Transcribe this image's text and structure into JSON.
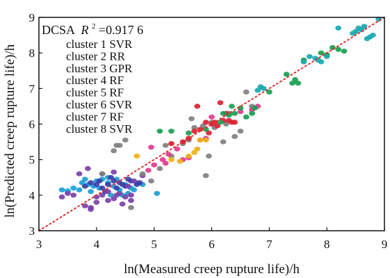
{
  "chart_data": {
    "type": "scatter",
    "xlabel": "ln(Measured creep rupture life)/h",
    "ylabel": "ln(Predicted creep rupture life)/h",
    "xlim": [
      3,
      9
    ],
    "ylim": [
      3,
      9
    ],
    "xticks": [
      "3",
      "4",
      "5",
      "6",
      "7",
      "8",
      "9"
    ],
    "yticks": [
      "3",
      "4",
      "5",
      "6",
      "7",
      "8",
      "9"
    ],
    "grid": false,
    "legend_position": "top-left",
    "annotation": {
      "method": "DCSA",
      "r2_symbol": "R",
      "r2_sup": "2",
      "r2_value": "=0.917 6"
    },
    "reference_line": {
      "x": [
        3,
        9
      ],
      "y": [
        3,
        9
      ],
      "color": "#e03030",
      "style": "dotted"
    },
    "legend": [
      "cluster 1 SVR",
      "cluster 2 RR",
      "cluster 3 GPR",
      "cluster 4 RF",
      "cluster 5 RF",
      "cluster 6 SVR",
      "cluster 7 RF",
      "cluster 8 SVR"
    ],
    "groups": [
      {
        "color": "#1a9ed8",
        "points": [
          [
            3.4,
            4.15
          ],
          [
            3.5,
            4.12
          ],
          [
            3.6,
            4.2
          ],
          [
            3.7,
            4.15
          ],
          [
            3.75,
            4.35
          ],
          [
            3.85,
            4.3
          ],
          [
            3.9,
            4.1
          ],
          [
            4.0,
            4.4
          ],
          [
            4.05,
            4.2
          ],
          [
            4.1,
            4.45
          ],
          [
            4.2,
            4.35
          ],
          [
            4.25,
            4.0
          ],
          [
            4.3,
            4.25
          ],
          [
            4.35,
            4.45
          ],
          [
            4.4,
            4.15
          ],
          [
            4.5,
            4.3
          ],
          [
            4.55,
            4.05
          ],
          [
            4.6,
            4.2
          ],
          [
            4.7,
            4.35
          ],
          [
            4.8,
            4.3
          ],
          [
            4.2,
            4.5
          ],
          [
            3.95,
            4.25
          ],
          [
            4.45,
            4.0
          ],
          [
            4.65,
            4.15
          ],
          [
            3.8,
            4.45
          ],
          [
            5.05,
            4.05
          ]
        ]
      },
      {
        "color": "#3b3fa8",
        "points": [
          [
            3.8,
            4.25
          ],
          [
            3.9,
            4.35
          ],
          [
            4.0,
            4.3
          ],
          [
            4.1,
            4.2
          ],
          [
            4.2,
            4.3
          ],
          [
            4.3,
            4.4
          ],
          [
            4.4,
            4.35
          ],
          [
            4.5,
            4.25
          ],
          [
            4.6,
            4.4
          ],
          [
            4.7,
            4.3
          ],
          [
            4.75,
            4.35
          ],
          [
            4.15,
            4.1
          ],
          [
            4.35,
            4.2
          ],
          [
            4.55,
            4.45
          ],
          [
            4.05,
            4.4
          ],
          [
            4.25,
            4.5
          ],
          [
            4.45,
            4.3
          ]
        ]
      },
      {
        "color": "#7a42a8",
        "points": [
          [
            3.4,
            3.95
          ],
          [
            3.6,
            4.0
          ],
          [
            3.8,
            3.7
          ],
          [
            3.9,
            3.6
          ],
          [
            4.0,
            3.8
          ],
          [
            4.1,
            4.0
          ],
          [
            4.2,
            3.85
          ],
          [
            4.3,
            3.9
          ],
          [
            4.4,
            4.05
          ],
          [
            4.5,
            3.95
          ],
          [
            4.6,
            4.0
          ],
          [
            3.7,
            4.6
          ],
          [
            4.1,
            4.6
          ],
          [
            4.3,
            4.65
          ],
          [
            4.6,
            3.85
          ],
          [
            4.0,
            3.95
          ],
          [
            4.2,
            4.1
          ],
          [
            4.45,
            3.75
          ],
          [
            4.55,
            4.25
          ],
          [
            4.65,
            4.4
          ],
          [
            4.8,
            4.55
          ],
          [
            3.9,
            3.65
          ],
          [
            4.35,
            4.0
          ],
          [
            3.85,
            4.75
          ],
          [
            3.5,
            4.05
          ]
        ]
      },
      {
        "color": "#808080",
        "points": [
          [
            4.6,
            3.65
          ],
          [
            4.8,
            4.6
          ],
          [
            4.95,
            4.4
          ],
          [
            5.1,
            4.75
          ],
          [
            5.3,
            5.1
          ],
          [
            5.5,
            5.45
          ],
          [
            5.6,
            5.55
          ],
          [
            5.7,
            5.9
          ],
          [
            5.85,
            5.95
          ],
          [
            6.0,
            6.05
          ],
          [
            6.2,
            5.5
          ],
          [
            6.3,
            6.3
          ],
          [
            6.5,
            5.8
          ],
          [
            6.7,
            6.5
          ],
          [
            5.9,
            4.55
          ],
          [
            4.3,
            5.25
          ],
          [
            4.35,
            5.4
          ],
          [
            4.4,
            5.4
          ],
          [
            4.5,
            5.55
          ],
          [
            5.2,
            5.4
          ],
          [
            6.05,
            5.9
          ],
          [
            6.4,
            5.65
          ],
          [
            6.6,
            6.9
          ],
          [
            4.1,
            4.6
          ],
          [
            5.95,
            5.1
          ],
          [
            6.25,
            6.0
          ],
          [
            5.65,
            6.15
          ]
        ]
      },
      {
        "color": "#dc2030",
        "points": [
          [
            5.3,
            5.45
          ],
          [
            5.5,
            5.5
          ],
          [
            5.6,
            5.6
          ],
          [
            5.7,
            5.8
          ],
          [
            5.8,
            5.85
          ],
          [
            5.9,
            6.05
          ],
          [
            6.0,
            6.0
          ],
          [
            6.1,
            5.95
          ],
          [
            6.2,
            6.1
          ],
          [
            6.3,
            6.1
          ],
          [
            6.35,
            6.05
          ],
          [
            6.15,
            6.6
          ],
          [
            6.4,
            6.05
          ],
          [
            5.75,
            6.5
          ],
          [
            6.05,
            6.05
          ],
          [
            5.95,
            5.75
          ],
          [
            6.25,
            6.3
          ]
        ]
      },
      {
        "color": "#e33c8c",
        "points": [
          [
            4.9,
            4.7
          ],
          [
            5.0,
            4.85
          ],
          [
            5.2,
            4.9
          ],
          [
            5.4,
            5.3
          ],
          [
            5.5,
            5.0
          ],
          [
            5.6,
            5.05
          ],
          [
            5.8,
            5.55
          ],
          [
            5.9,
            5.6
          ],
          [
            6.0,
            6.2
          ],
          [
            6.5,
            6.35
          ],
          [
            6.7,
            6.4
          ],
          [
            6.8,
            6.5
          ],
          [
            4.95,
            5.35
          ],
          [
            5.15,
            5.0
          ],
          [
            5.25,
            5.15
          ]
        ]
      },
      {
        "color": "#f0b016",
        "points": [
          [
            5.3,
            5.0
          ],
          [
            5.45,
            4.95
          ],
          [
            5.6,
            5.1
          ],
          [
            5.7,
            5.2
          ],
          [
            5.75,
            5.3
          ],
          [
            5.8,
            5.55
          ],
          [
            4.7,
            5.1
          ],
          [
            5.9,
            5.55
          ]
        ]
      },
      {
        "color": "#18a050",
        "points": [
          [
            5.1,
            5.8
          ],
          [
            5.3,
            5.8
          ],
          [
            5.6,
            5.75
          ],
          [
            5.9,
            5.85
          ],
          [
            6.2,
            6.3
          ],
          [
            6.3,
            6.25
          ],
          [
            6.4,
            6.3
          ],
          [
            6.5,
            6.45
          ],
          [
            6.6,
            6.2
          ],
          [
            6.7,
            6.3
          ],
          [
            7.0,
            6.9
          ],
          [
            7.3,
            7.4
          ],
          [
            7.4,
            7.15
          ],
          [
            7.5,
            7.15
          ],
          [
            7.6,
            7.8
          ],
          [
            7.9,
            8.0
          ],
          [
            8.0,
            7.95
          ],
          [
            8.2,
            8.1
          ],
          [
            8.3,
            8.05
          ],
          [
            6.35,
            6.5
          ],
          [
            7.45,
            7.25
          ],
          [
            8.1,
            8.15
          ],
          [
            6.75,
            6.45
          ],
          [
            6.15,
            6.05
          ]
        ]
      },
      {
        "color": "#18a8b0",
        "points": [
          [
            6.8,
            6.95
          ],
          [
            6.9,
            7.0
          ],
          [
            7.6,
            7.75
          ],
          [
            7.8,
            7.85
          ],
          [
            7.9,
            7.75
          ],
          [
            8.0,
            7.9
          ],
          [
            8.2,
            8.7
          ],
          [
            8.5,
            8.6
          ],
          [
            8.55,
            8.7
          ],
          [
            8.6,
            8.65
          ],
          [
            8.7,
            8.4
          ],
          [
            8.8,
            8.5
          ],
          [
            8.65,
            8.75
          ],
          [
            8.75,
            8.45
          ],
          [
            6.85,
            7.05
          ],
          [
            7.7,
            7.9
          ],
          [
            8.45,
            8.55
          ],
          [
            8.9,
            8.95
          ],
          [
            7.85,
            7.8
          ]
        ]
      }
    ]
  }
}
